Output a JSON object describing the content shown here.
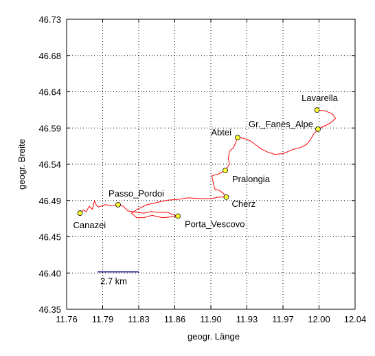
{
  "chart_data": {
    "type": "line",
    "title": "",
    "xlabel": "geogr. Länge",
    "ylabel": "geogr. Breite",
    "xlim": [
      11.76,
      12.04
    ],
    "ylim": [
      46.35,
      46.73
    ],
    "x_ticks": [
      "11.76",
      "11.79",
      "11.83",
      "11.86",
      "11.90",
      "11.93",
      "11.97",
      "12.00",
      "12.04"
    ],
    "y_ticks": [
      "46.35",
      "46.40",
      "46.45",
      "46.49",
      "46.54",
      "46.59",
      "46.64",
      "46.68",
      "46.73"
    ],
    "grid": true,
    "colors": {
      "track": "#ff0000",
      "marker_fill": "#ffff33",
      "scale_bar": "#000080"
    },
    "scale_bar": {
      "label": "2.7 km",
      "x_start": 11.79,
      "x_end": 11.83,
      "y": 46.399
    },
    "places": [
      {
        "name": "Canazei",
        "lon": 11.773,
        "lat": 46.476
      },
      {
        "name": "Passo_Pordoi",
        "lon": 11.81,
        "lat": 46.487
      },
      {
        "name": "Porta_Vescovo",
        "lon": 11.868,
        "lat": 46.472
      },
      {
        "name": "Cherz",
        "lon": 11.915,
        "lat": 46.497
      },
      {
        "name": "Pralongia",
        "lon": 11.914,
        "lat": 46.532
      },
      {
        "name": "Abtei",
        "lon": 11.926,
        "lat": 46.575
      },
      {
        "name": "Gr._Fanes_Alpe",
        "lon": 12.004,
        "lat": 46.586
      },
      {
        "name": "Lavarella",
        "lon": 12.003,
        "lat": 46.611
      }
    ],
    "track": [
      [
        11.773,
        46.476
      ],
      [
        11.776,
        46.48
      ],
      [
        11.779,
        46.478
      ],
      [
        11.782,
        46.485
      ],
      [
        11.785,
        46.481
      ],
      [
        11.787,
        46.492
      ],
      [
        11.789,
        46.486
      ],
      [
        11.791,
        46.484
      ],
      [
        11.797,
        46.487
      ],
      [
        11.804,
        46.486
      ],
      [
        11.81,
        46.487
      ],
      [
        11.815,
        46.485
      ],
      [
        11.819,
        46.479
      ],
      [
        11.828,
        46.477
      ],
      [
        11.835,
        46.476
      ],
      [
        11.842,
        46.478
      ],
      [
        11.849,
        46.477
      ],
      [
        11.858,
        46.477
      ],
      [
        11.863,
        46.474
      ],
      [
        11.868,
        46.472
      ],
      [
        11.861,
        46.471
      ],
      [
        11.853,
        46.47
      ],
      [
        11.843,
        46.473
      ],
      [
        11.835,
        46.47
      ],
      [
        11.828,
        46.47
      ],
      [
        11.823,
        46.476
      ],
      [
        11.83,
        46.482
      ],
      [
        11.838,
        46.487
      ],
      [
        11.848,
        46.49
      ],
      [
        11.858,
        46.493
      ],
      [
        11.868,
        46.494
      ],
      [
        11.878,
        46.496
      ],
      [
        11.89,
        46.495
      ],
      [
        11.9,
        46.495
      ],
      [
        11.908,
        46.497
      ],
      [
        11.915,
        46.497
      ],
      [
        11.912,
        46.502
      ],
      [
        11.908,
        46.506
      ],
      [
        11.904,
        46.507
      ],
      [
        11.903,
        46.512
      ],
      [
        11.902,
        46.518
      ],
      [
        11.901,
        46.525
      ],
      [
        11.907,
        46.527
      ],
      [
        11.914,
        46.532
      ],
      [
        11.918,
        46.54
      ],
      [
        11.917,
        46.548
      ],
      [
        11.918,
        46.557
      ],
      [
        11.922,
        46.562
      ],
      [
        11.924,
        46.568
      ],
      [
        11.926,
        46.575
      ],
      [
        11.932,
        46.574
      ],
      [
        11.938,
        46.571
      ],
      [
        11.943,
        46.566
      ],
      [
        11.949,
        46.56
      ],
      [
        11.955,
        46.556
      ],
      [
        11.962,
        46.553
      ],
      [
        11.97,
        46.554
      ],
      [
        11.979,
        46.559
      ],
      [
        11.987,
        46.562
      ],
      [
        11.993,
        46.566
      ],
      [
        11.997,
        46.573
      ],
      [
        12.0,
        46.58
      ],
      [
        12.004,
        46.586
      ],
      [
        12.01,
        46.59
      ],
      [
        12.016,
        46.594
      ],
      [
        12.021,
        46.6
      ],
      [
        12.018,
        46.606
      ],
      [
        12.011,
        46.61
      ],
      [
        12.003,
        46.611
      ]
    ]
  }
}
